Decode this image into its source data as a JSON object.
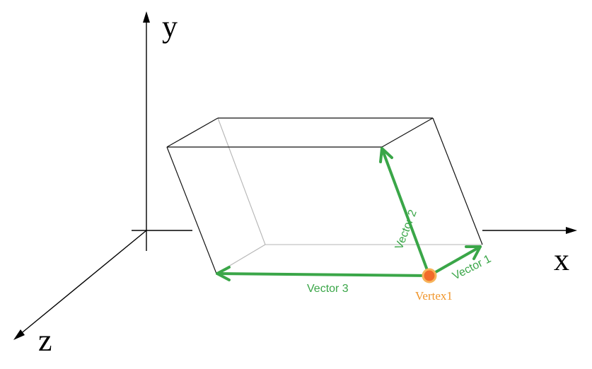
{
  "axes": {
    "x_label": "x",
    "y_label": "y",
    "z_label": "z"
  },
  "vectors": {
    "vector1_label": "Vector 1",
    "vector2_label": "Vector 2",
    "vector3_label": "Vector 3"
  },
  "vertex": {
    "label": "Vertex1"
  },
  "colors": {
    "vector": "#3aa648",
    "vertex_fill": "#f26b2a",
    "vertex_ring": "#f7b45a",
    "vertex_label": "#f0952a",
    "hidden_edge": "#b5b5b5",
    "edge": "#111111"
  }
}
